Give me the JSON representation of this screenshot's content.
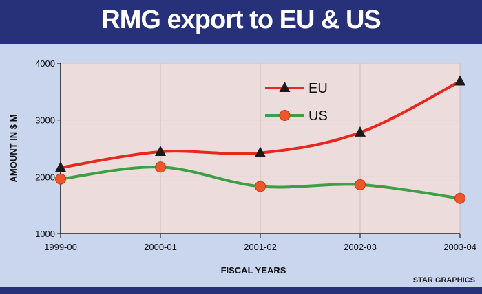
{
  "header": {
    "title": "RMG export to EU & US"
  },
  "credit": "STAR GRAPHICS",
  "colors": {
    "plot_bg": "#ecdcdc",
    "eu": "#e8281e",
    "us": "#3e9e46",
    "us_marker": "#f0562a",
    "eu_marker": "#1a1a1a"
  },
  "chart_data": {
    "type": "line",
    "title": "RMG export to EU & US",
    "xlabel": "FISCAL YEARS",
    "ylabel": "AMOUNT IN $ M",
    "categories": [
      "1999-00",
      "2000-01",
      "2001-02",
      "2002-03",
      "2003-04"
    ],
    "ylim": [
      1000,
      4000
    ],
    "yticks": [
      "1000",
      "2000",
      "3000",
      "4000"
    ],
    "grid": true,
    "legend_position": "top-right",
    "series": [
      {
        "name": "EU",
        "values": [
          2160,
          2440,
          2420,
          2780,
          3680
        ]
      },
      {
        "name": "US",
        "values": [
          1960,
          2170,
          1830,
          1860,
          1620
        ]
      }
    ]
  }
}
